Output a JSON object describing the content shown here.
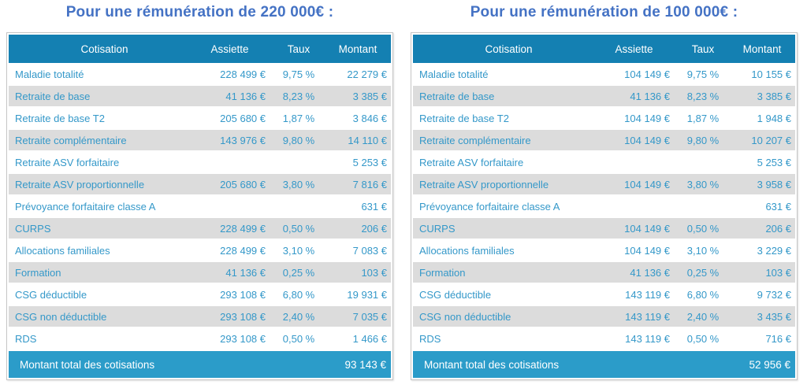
{
  "colors": {
    "title_color": "#4472C4",
    "header_bg": "#1480B2",
    "total_bg": "#2B9CC9",
    "row_text": "#3498C9",
    "stripe_bg": "#DCDCDC",
    "border_color": "#C6C6C6"
  },
  "columns": [
    "Cotisation",
    "Assiette",
    "Taux",
    "Montant"
  ],
  "panels": [
    {
      "title": "Pour une rémunération de 220 000€ :",
      "rows": [
        {
          "label": "Maladie totalité",
          "assiette": "228 499 €",
          "taux": "9,75 %",
          "montant": "22 279 €"
        },
        {
          "label": "Retraite de base",
          "assiette": "41 136 €",
          "taux": "8,23 %",
          "montant": "3 385 €"
        },
        {
          "label": "Retraite de base T2",
          "assiette": "205 680 €",
          "taux": "1,87 %",
          "montant": "3 846 €"
        },
        {
          "label": "Retraite complémentaire",
          "assiette": "143 976 €",
          "taux": "9,80 %",
          "montant": "14 110 €"
        },
        {
          "label": "Retraite ASV forfaitaire",
          "assiette": "",
          "taux": "",
          "montant": "5 253 €"
        },
        {
          "label": "Retraite ASV proportionnelle",
          "assiette": "205 680 €",
          "taux": "3,80 %",
          "montant": "7 816 €"
        },
        {
          "label": "Prévoyance forfaitaire classe A",
          "assiette": "",
          "taux": "",
          "montant": "631 €"
        },
        {
          "label": "CURPS",
          "assiette": "228 499 €",
          "taux": "0,50 %",
          "montant": "206 €"
        },
        {
          "label": "Allocations familiales",
          "assiette": "228 499 €",
          "taux": "3,10 %",
          "montant": "7 083 €"
        },
        {
          "label": "Formation",
          "assiette": "41 136 €",
          "taux": "0,25 %",
          "montant": "103 €"
        },
        {
          "label": "CSG déductible",
          "assiette": "293 108 €",
          "taux": "6,80 %",
          "montant": "19 931 €"
        },
        {
          "label": "CSG non déductible",
          "assiette": "293 108 €",
          "taux": "2,40 %",
          "montant": "7 035 €"
        },
        {
          "label": "RDS",
          "assiette": "293 108 €",
          "taux": "0,50 %",
          "montant": "1 466 €"
        }
      ],
      "total_label": "Montant total des cotisations",
      "total_montant": "93 143 €"
    },
    {
      "title": "Pour une rémunération de 100 000€ :",
      "rows": [
        {
          "label": "Maladie totalité",
          "assiette": "104 149 €",
          "taux": "9,75 %",
          "montant": "10 155 €"
        },
        {
          "label": "Retraite de base",
          "assiette": "41 136 €",
          "taux": "8,23 %",
          "montant": "3 385 €"
        },
        {
          "label": "Retraite de base T2",
          "assiette": "104 149 €",
          "taux": "1,87 %",
          "montant": "1 948 €"
        },
        {
          "label": "Retraite complémentaire",
          "assiette": "104 149 €",
          "taux": "9,80 %",
          "montant": "10 207 €"
        },
        {
          "label": "Retraite ASV forfaitaire",
          "assiette": "",
          "taux": "",
          "montant": "5 253 €"
        },
        {
          "label": "Retraite ASV proportionnelle",
          "assiette": "104 149 €",
          "taux": "3,80 %",
          "montant": "3 958 €"
        },
        {
          "label": "Prévoyance forfaitaire classe A",
          "assiette": "",
          "taux": "",
          "montant": "631 €"
        },
        {
          "label": "CURPS",
          "assiette": "104 149 €",
          "taux": "0,50 %",
          "montant": "206 €"
        },
        {
          "label": "Allocations familiales",
          "assiette": "104 149 €",
          "taux": "3,10 %",
          "montant": "3 229 €"
        },
        {
          "label": "Formation",
          "assiette": "41 136 €",
          "taux": "0,25 %",
          "montant": "103 €"
        },
        {
          "label": "CSG déductible",
          "assiette": "143 119 €",
          "taux": "6,80 %",
          "montant": "9 732 €"
        },
        {
          "label": "CSG non déductible",
          "assiette": "143 119 €",
          "taux": "2,40 %",
          "montant": "3 435 €"
        },
        {
          "label": "RDS",
          "assiette": "143 119 €",
          "taux": "0,50 %",
          "montant": "716 €"
        }
      ],
      "total_label": "Montant total des cotisations",
      "total_montant": "52 956 €"
    }
  ]
}
